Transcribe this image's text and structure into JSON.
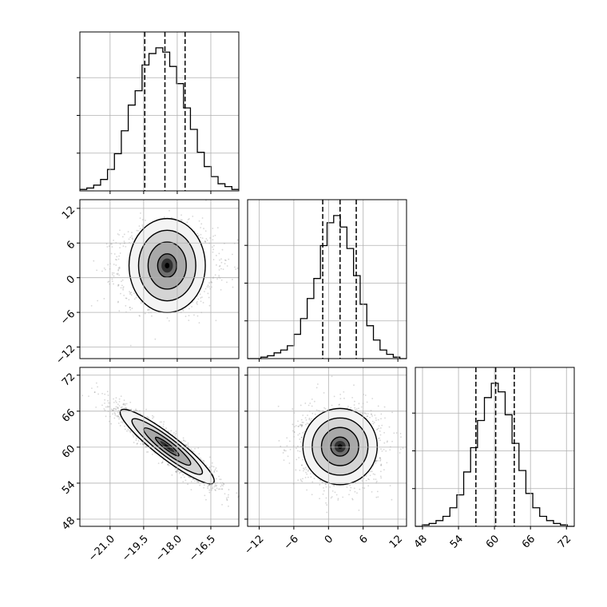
{
  "chart_data": {
    "type": "corner",
    "parameters": [
      {
        "name": "",
        "ticks": [
          -21.0,
          -19.5,
          -18.0,
          -16.5
        ],
        "tick_labels": [
          "−21.0",
          "−19.5",
          "−18.0",
          "−16.5"
        ],
        "range": [
          -22.35,
          -15.25
        ],
        "quantiles": [
          -19.45,
          -18.55,
          -17.65
        ]
      },
      {
        "name": "",
        "ticks": [
          -12,
          -6,
          0,
          6,
          12
        ],
        "tick_labels": [
          "−12",
          "−6",
          "0",
          "6",
          "12"
        ],
        "range": [
          -14.0,
          13.5
        ],
        "quantiles": [
          -1.0,
          2.0,
          4.8
        ]
      },
      {
        "name": "",
        "ticks": [
          48,
          54,
          60,
          66,
          72
        ],
        "tick_labels": [
          "48",
          "54",
          "60",
          "66",
          "72"
        ],
        "range": [
          46.8,
          73.3
        ],
        "quantiles": [
          56.9,
          60.2,
          63.3
        ]
      }
    ],
    "histograms": [
      {
        "parameter": 0,
        "bin_edges_range": [
          -22.35,
          -15.25
        ],
        "counts": [
          1,
          2,
          4,
          8,
          15,
          26,
          42,
          60,
          70,
          88,
          96,
          100,
          97,
          87,
          75,
          58,
          43,
          27,
          17,
          10,
          5,
          3,
          1
        ]
      },
      {
        "parameter": 1,
        "bin_edges_range": [
          -14.0,
          13.5
        ],
        "counts": [
          0,
          0,
          1,
          2,
          4,
          6,
          9,
          17,
          28,
          42,
          56,
          79,
          95,
          100,
          92,
          77,
          58,
          38,
          23,
          13,
          6,
          3,
          1,
          0
        ]
      },
      {
        "parameter": 2,
        "bin_edges_range": [
          46.8,
          73.3
        ],
        "counts": [
          0,
          1,
          2,
          4,
          7,
          13,
          22,
          38,
          55,
          74,
          90,
          100,
          94,
          78,
          58,
          39,
          23,
          13,
          7,
          4,
          2,
          1,
          0
        ]
      }
    ],
    "scatter_panels": [
      {
        "x_param": 0,
        "y_param": 1,
        "center": [
          -18.45,
          2.1
        ],
        "sd": [
          1.05,
          3.3
        ],
        "correlation": 0.0
      },
      {
        "x_param": 0,
        "y_param": 2,
        "center": [
          -18.45,
          60.1
        ],
        "sd": [
          1.05,
          3.1
        ],
        "correlation": -0.92
      },
      {
        "x_param": 1,
        "y_param": 2,
        "center": [
          2.0,
          60.1
        ],
        "sd": [
          3.3,
          3.1
        ],
        "correlation": 0.0
      }
    ],
    "contour_levels_sigma": [
      0.5,
      1.0,
      1.5,
      2.0
    ],
    "grid": true,
    "colors": {
      "points": "#6e6e6e",
      "lines": "#000000",
      "grid": "#b0b0b0",
      "fill_light": "#f4f4f4",
      "fill_dark": "#000000"
    }
  }
}
